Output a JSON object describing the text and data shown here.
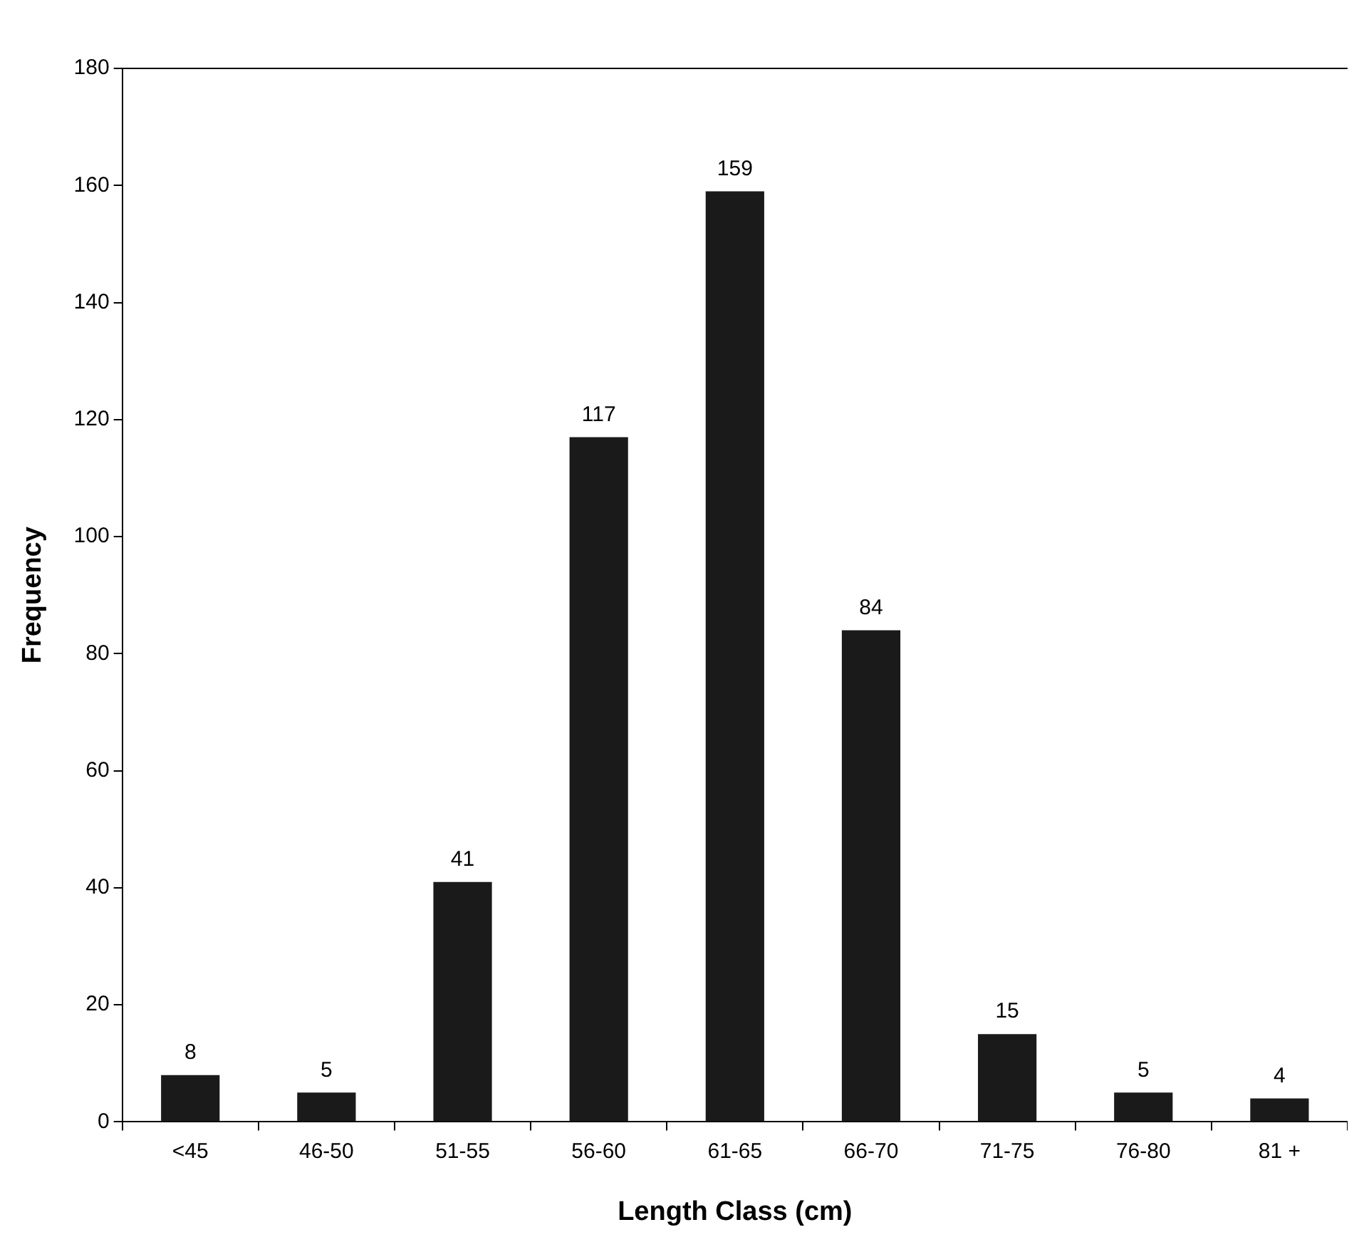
{
  "chart_data": {
    "type": "bar",
    "xlabel": "Length Class (cm)",
    "ylabel": "Frequency",
    "categories": [
      "<45",
      "46-50",
      "51-55",
      "56-60",
      "61-65",
      "66-70",
      "71-75",
      "76-80",
      "81 +"
    ],
    "values": [
      8,
      5,
      41,
      117,
      159,
      84,
      15,
      5,
      4
    ],
    "color": "#1a1a1a",
    "ylim": [
      0,
      180
    ],
    "yticks": [
      0,
      20,
      40,
      60,
      80,
      100,
      120,
      140,
      160,
      180
    ],
    "grid": false,
    "legend": false,
    "data_labels": true
  }
}
